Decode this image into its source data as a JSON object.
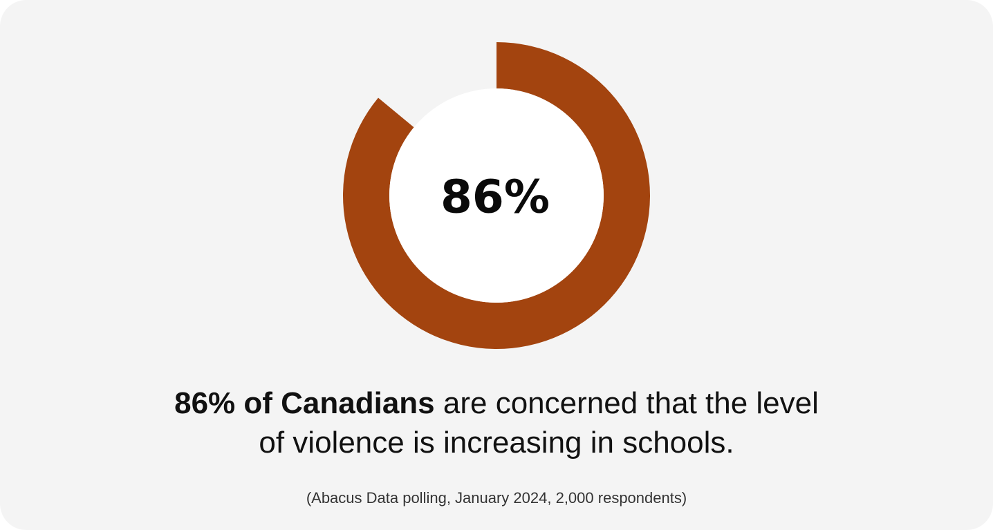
{
  "chart_data": {
    "type": "pie",
    "center_label": "86%",
    "values": [
      86,
      14
    ],
    "colors": {
      "filled": "#a3440f",
      "inner": "#ffffff",
      "background": "#f4f4f4"
    }
  },
  "caption": {
    "bold": "86% of Canadians",
    "line1_rest": " are concerned that the level",
    "line2": "of violence is increasing in schools."
  },
  "source": "(Abacus Data polling, January 2024, 2,000 respondents)"
}
